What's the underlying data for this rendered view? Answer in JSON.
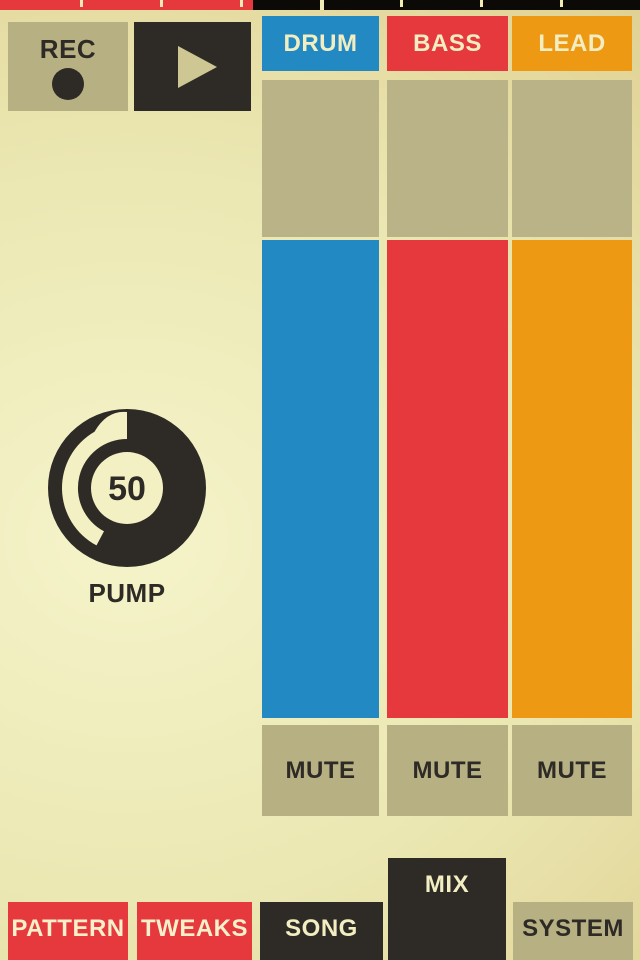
{
  "position_bar": {
    "progress_pct": 39.5,
    "segments": 8,
    "bar_color": "#0b0a07",
    "fill_color": "#e6393e",
    "tick_color": "#efedb5"
  },
  "transport": {
    "rec_label": "REC",
    "play_icon": "play-triangle"
  },
  "tracks": [
    {
      "id": "drum",
      "label": "DRUM",
      "color": "#2289c2",
      "mute_label": "MUTE"
    },
    {
      "id": "bass",
      "label": "BASS",
      "color": "#e6393e",
      "mute_label": "MUTE"
    },
    {
      "id": "lead",
      "label": "LEAD",
      "color": "#ee9914",
      "mute_label": "MUTE"
    }
  ],
  "knob": {
    "value": "50",
    "label": "PUMP"
  },
  "bottom_nav": {
    "pattern_label": "PATTERN",
    "tweaks_label": "TWEAKS",
    "song_label": "SONG",
    "mix_label": "MIX",
    "system_label": "SYSTEM"
  },
  "colors": {
    "background_light": "#f5f4ca",
    "background_dark": "#ddcc8c",
    "tan": "#b7b083",
    "pad_tan": "#bab387",
    "dark": "#2e2b27",
    "cream_text": "#f2eec2",
    "red": "#e6393e",
    "blue": "#2289c2",
    "orange": "#ee9914"
  }
}
